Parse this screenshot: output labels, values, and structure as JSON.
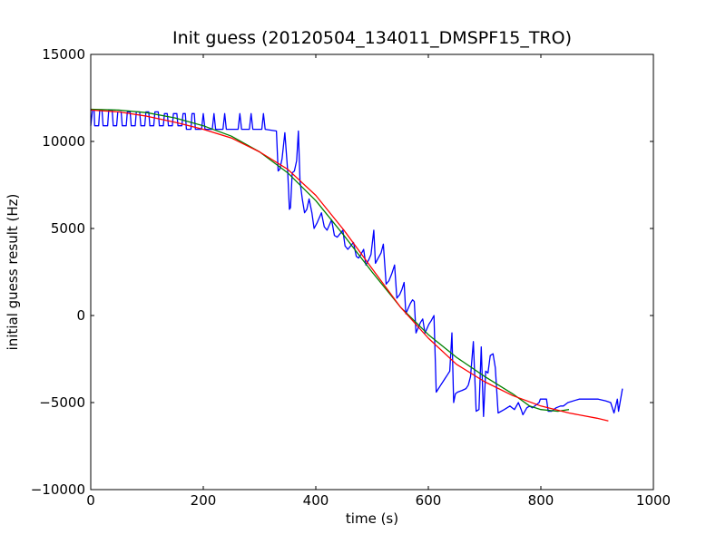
{
  "chart_data": {
    "type": "line",
    "title": "Init guess (20120504_134011_DMSPF15_TRO)",
    "xlabel": "time (s)",
    "ylabel": "initial guess result (Hz)",
    "xlim": [
      0,
      1000
    ],
    "ylim": [
      -10000,
      15000
    ],
    "grid": false,
    "x_ticks": [
      0,
      200,
      400,
      600,
      800,
      1000
    ],
    "x_tick_labels": [
      "0",
      "200",
      "400",
      "600",
      "800",
      "1000"
    ],
    "y_ticks": [
      -10000,
      -5000,
      0,
      5000,
      10000,
      15000
    ],
    "y_tick_labels": [
      "−10000",
      "−5000",
      "0",
      "5000",
      "10000",
      "15000"
    ],
    "series": [
      {
        "color": "#0000ff",
        "points": [
          [
            0,
            10900
          ],
          [
            3,
            11800
          ],
          [
            6,
            11800
          ],
          [
            7,
            10900
          ],
          [
            14,
            10900
          ],
          [
            16,
            11800
          ],
          [
            20,
            11800
          ],
          [
            22,
            10900
          ],
          [
            30,
            10900
          ],
          [
            32,
            11800
          ],
          [
            38,
            11800
          ],
          [
            40,
            10900
          ],
          [
            46,
            10900
          ],
          [
            48,
            11700
          ],
          [
            54,
            11700
          ],
          [
            56,
            10900
          ],
          [
            63,
            10900
          ],
          [
            65,
            11700
          ],
          [
            70,
            11700
          ],
          [
            72,
            10900
          ],
          [
            79,
            10900
          ],
          [
            81,
            11700
          ],
          [
            87,
            11700
          ],
          [
            89,
            10900
          ],
          [
            96,
            10900
          ],
          [
            98,
            11700
          ],
          [
            103,
            11700
          ],
          [
            105,
            10900
          ],
          [
            112,
            10900
          ],
          [
            114,
            11700
          ],
          [
            120,
            11700
          ],
          [
            122,
            10900
          ],
          [
            129,
            10900
          ],
          [
            131,
            11600
          ],
          [
            136,
            11600
          ],
          [
            138,
            10900
          ],
          [
            145,
            10900
          ],
          [
            147,
            11600
          ],
          [
            153,
            11600
          ],
          [
            155,
            10900
          ],
          [
            162,
            10900
          ],
          [
            164,
            11600
          ],
          [
            168,
            11600
          ],
          [
            170,
            10700
          ],
          [
            178,
            10700
          ],
          [
            180,
            11600
          ],
          [
            184,
            11600
          ],
          [
            186,
            10700
          ],
          [
            197,
            10700
          ],
          [
            200,
            11600
          ],
          [
            203,
            10700
          ],
          [
            216,
            10700
          ],
          [
            219,
            11600
          ],
          [
            222,
            10700
          ],
          [
            235,
            10700
          ],
          [
            238,
            11600
          ],
          [
            241,
            10700
          ],
          [
            262,
            10700
          ],
          [
            265,
            11600
          ],
          [
            268,
            10700
          ],
          [
            282,
            10700
          ],
          [
            285,
            11600
          ],
          [
            288,
            10700
          ],
          [
            304,
            10700
          ],
          [
            307,
            11600
          ],
          [
            310,
            10700
          ],
          [
            330,
            10600
          ],
          [
            333,
            8300
          ],
          [
            336,
            8400
          ],
          [
            340,
            9000
          ],
          [
            345,
            10500
          ],
          [
            350,
            8300
          ],
          [
            353,
            6100
          ],
          [
            355,
            6200
          ],
          [
            358,
            8200
          ],
          [
            362,
            8300
          ],
          [
            366,
            8900
          ],
          [
            369,
            10600
          ],
          [
            372,
            7700
          ],
          [
            376,
            6700
          ],
          [
            380,
            5900
          ],
          [
            384,
            6100
          ],
          [
            388,
            6700
          ],
          [
            393,
            5900
          ],
          [
            397,
            5000
          ],
          [
            402,
            5300
          ],
          [
            406,
            5600
          ],
          [
            410,
            5900
          ],
          [
            415,
            5100
          ],
          [
            420,
            4900
          ],
          [
            424,
            5200
          ],
          [
            428,
            5500
          ],
          [
            433,
            4600
          ],
          [
            438,
            4500
          ],
          [
            443,
            4700
          ],
          [
            448,
            4900
          ],
          [
            452,
            4000
          ],
          [
            457,
            3800
          ],
          [
            462,
            4000
          ],
          [
            467,
            4200
          ],
          [
            472,
            3400
          ],
          [
            476,
            3300
          ],
          [
            480,
            3500
          ],
          [
            485,
            3800
          ],
          [
            489,
            2900
          ],
          [
            494,
            3200
          ],
          [
            498,
            3500
          ],
          [
            503,
            4900
          ],
          [
            506,
            3000
          ],
          [
            511,
            3300
          ],
          [
            516,
            3600
          ],
          [
            520,
            4100
          ],
          [
            525,
            1800
          ],
          [
            530,
            2000
          ],
          [
            535,
            2400
          ],
          [
            540,
            2900
          ],
          [
            544,
            1000
          ],
          [
            549,
            1200
          ],
          [
            553,
            1500
          ],
          [
            557,
            1900
          ],
          [
            560,
            100
          ],
          [
            564,
            400
          ],
          [
            568,
            700
          ],
          [
            572,
            900
          ],
          [
            575,
            800
          ],
          [
            578,
            -1000
          ],
          [
            582,
            -700
          ],
          [
            586,
            -400
          ],
          [
            590,
            -200
          ],
          [
            594,
            -1000
          ],
          [
            597,
            -800
          ],
          [
            601,
            -500
          ],
          [
            605,
            -300
          ],
          [
            610,
            0
          ],
          [
            614,
            -4400
          ],
          [
            618,
            -4200
          ],
          [
            622,
            -4000
          ],
          [
            626,
            -3800
          ],
          [
            630,
            -3600
          ],
          [
            634,
            -3400
          ],
          [
            638,
            -3200
          ],
          [
            642,
            -1000
          ],
          [
            645,
            -5000
          ],
          [
            648,
            -4500
          ],
          [
            652,
            -4400
          ],
          [
            660,
            -4300
          ],
          [
            667,
            -4200
          ],
          [
            671,
            -4000
          ],
          [
            675,
            -3500
          ],
          [
            680,
            -1500
          ],
          [
            685,
            -5500
          ],
          [
            690,
            -5400
          ],
          [
            694,
            -1800
          ],
          [
            698,
            -5800
          ],
          [
            702,
            -3200
          ],
          [
            706,
            -3300
          ],
          [
            710,
            -2300
          ],
          [
            715,
            -2200
          ],
          [
            719,
            -3000
          ],
          [
            724,
            -5600
          ],
          [
            735,
            -5400
          ],
          [
            745,
            -5200
          ],
          [
            753,
            -5400
          ],
          [
            760,
            -5000
          ],
          [
            765,
            -5400
          ],
          [
            768,
            -5700
          ],
          [
            775,
            -5300
          ],
          [
            780,
            -5200
          ],
          [
            785,
            -5300
          ],
          [
            797,
            -5000
          ],
          [
            799,
            -4800
          ],
          [
            810,
            -4800
          ],
          [
            813,
            -5500
          ],
          [
            819,
            -5500
          ],
          [
            827,
            -5300
          ],
          [
            835,
            -5200
          ],
          [
            840,
            -5200
          ],
          [
            848,
            -5000
          ],
          [
            868,
            -4800
          ],
          [
            880,
            -4800
          ],
          [
            902,
            -4800
          ],
          [
            915,
            -4900
          ],
          [
            924,
            -5000
          ],
          [
            930,
            -5600
          ],
          [
            936,
            -4800
          ],
          [
            938,
            -5500
          ],
          [
            945,
            -4200
          ]
        ]
      },
      {
        "color": "#008000",
        "points": [
          [
            0,
            11850
          ],
          [
            50,
            11800
          ],
          [
            100,
            11650
          ],
          [
            150,
            11350
          ],
          [
            200,
            10900
          ],
          [
            250,
            10300
          ],
          [
            300,
            9400
          ],
          [
            350,
            8200
          ],
          [
            400,
            6600
          ],
          [
            450,
            4600
          ],
          [
            500,
            2500
          ],
          [
            550,
            500
          ],
          [
            600,
            -1100
          ],
          [
            650,
            -2400
          ],
          [
            700,
            -3500
          ],
          [
            750,
            -4500
          ],
          [
            780,
            -5200
          ],
          [
            800,
            -5400
          ],
          [
            830,
            -5500
          ],
          [
            850,
            -5400
          ]
        ]
      },
      {
        "color": "#ff0000",
        "points": [
          [
            0,
            11800
          ],
          [
            50,
            11700
          ],
          [
            100,
            11450
          ],
          [
            150,
            11100
          ],
          [
            200,
            10700
          ],
          [
            250,
            10200
          ],
          [
            300,
            9400
          ],
          [
            350,
            8400
          ],
          [
            400,
            6900
          ],
          [
            450,
            4900
          ],
          [
            500,
            2700
          ],
          [
            550,
            500
          ],
          [
            600,
            -1300
          ],
          [
            650,
            -2800
          ],
          [
            700,
            -3800
          ],
          [
            750,
            -4600
          ],
          [
            800,
            -5200
          ],
          [
            850,
            -5600
          ],
          [
            900,
            -5900
          ],
          [
            920,
            -6050
          ]
        ]
      }
    ]
  }
}
